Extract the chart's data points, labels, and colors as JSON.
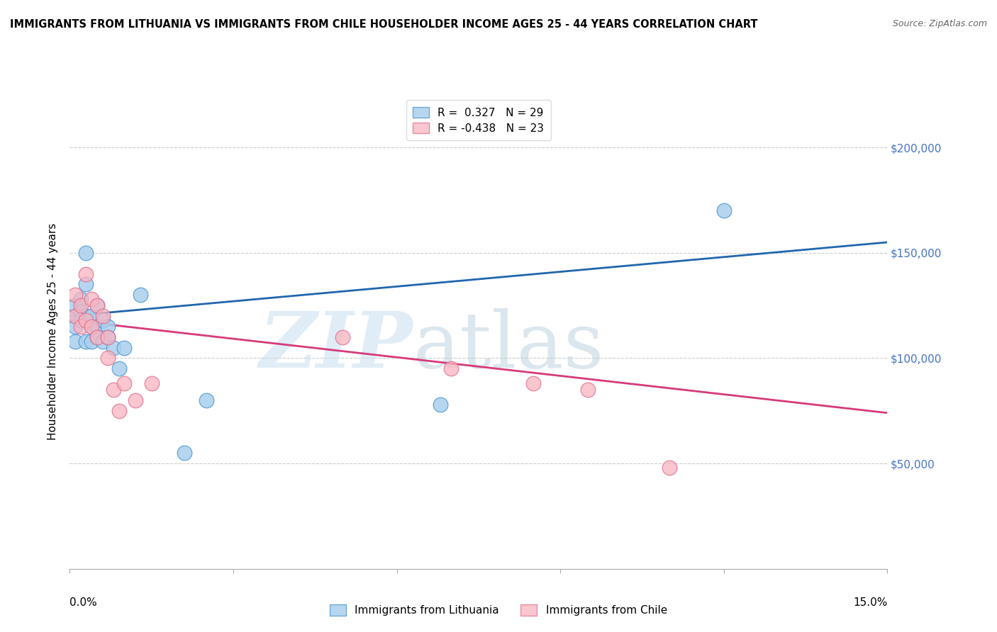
{
  "title": "IMMIGRANTS FROM LITHUANIA VS IMMIGRANTS FROM CHILE HOUSEHOLDER INCOME AGES 25 - 44 YEARS CORRELATION CHART",
  "source": "Source: ZipAtlas.com",
  "ylabel": "Householder Income Ages 25 - 44 years",
  "xlim": [
    0.0,
    0.15
  ],
  "ylim": [
    0,
    225000
  ],
  "yticks": [
    0,
    50000,
    100000,
    150000,
    200000
  ],
  "ytick_labels": [
    "",
    "$50,000",
    "$100,000",
    "$150,000",
    "$200,000"
  ],
  "legend1_r": "0.327",
  "legend1_n": "29",
  "legend2_r": "-0.438",
  "legend2_n": "23",
  "blue_scatter": "#aacfee",
  "pink_scatter": "#f9b4c0",
  "line_blue": "#2166ac",
  "line_pink": "#d63a7a",
  "blue_edge": "#5a9fd4",
  "pink_edge": "#e07090",
  "lithuania_x": [
    0.001,
    0.001,
    0.001,
    0.001,
    0.002,
    0.002,
    0.002,
    0.003,
    0.003,
    0.003,
    0.003,
    0.004,
    0.004,
    0.004,
    0.005,
    0.005,
    0.005,
    0.006,
    0.006,
    0.007,
    0.007,
    0.008,
    0.009,
    0.01,
    0.013,
    0.021,
    0.025,
    0.068,
    0.12
  ],
  "lithuania_y": [
    120000,
    115000,
    108000,
    125000,
    128000,
    122000,
    118000,
    135000,
    150000,
    120000,
    108000,
    115000,
    108000,
    120000,
    125000,
    115000,
    110000,
    118000,
    108000,
    115000,
    110000,
    105000,
    95000,
    105000,
    130000,
    55000,
    80000,
    78000,
    170000
  ],
  "chile_x": [
    0.001,
    0.001,
    0.002,
    0.002,
    0.003,
    0.003,
    0.004,
    0.004,
    0.005,
    0.005,
    0.006,
    0.007,
    0.007,
    0.008,
    0.009,
    0.01,
    0.012,
    0.015,
    0.05,
    0.07,
    0.085,
    0.095,
    0.11
  ],
  "chile_y": [
    120000,
    130000,
    125000,
    115000,
    140000,
    118000,
    128000,
    115000,
    125000,
    110000,
    120000,
    110000,
    100000,
    85000,
    75000,
    88000,
    80000,
    88000,
    110000,
    95000,
    88000,
    85000,
    48000
  ],
  "blue_line_y0": 120000,
  "blue_line_y1": 155000,
  "pink_line_y0": 118000,
  "pink_line_y1": 74000,
  "watermark_zip_color": "#c8dff0",
  "watermark_atlas_color": "#b0c8d8",
  "grid_color": "#cccccc",
  "right_tick_color": "#4472c4"
}
